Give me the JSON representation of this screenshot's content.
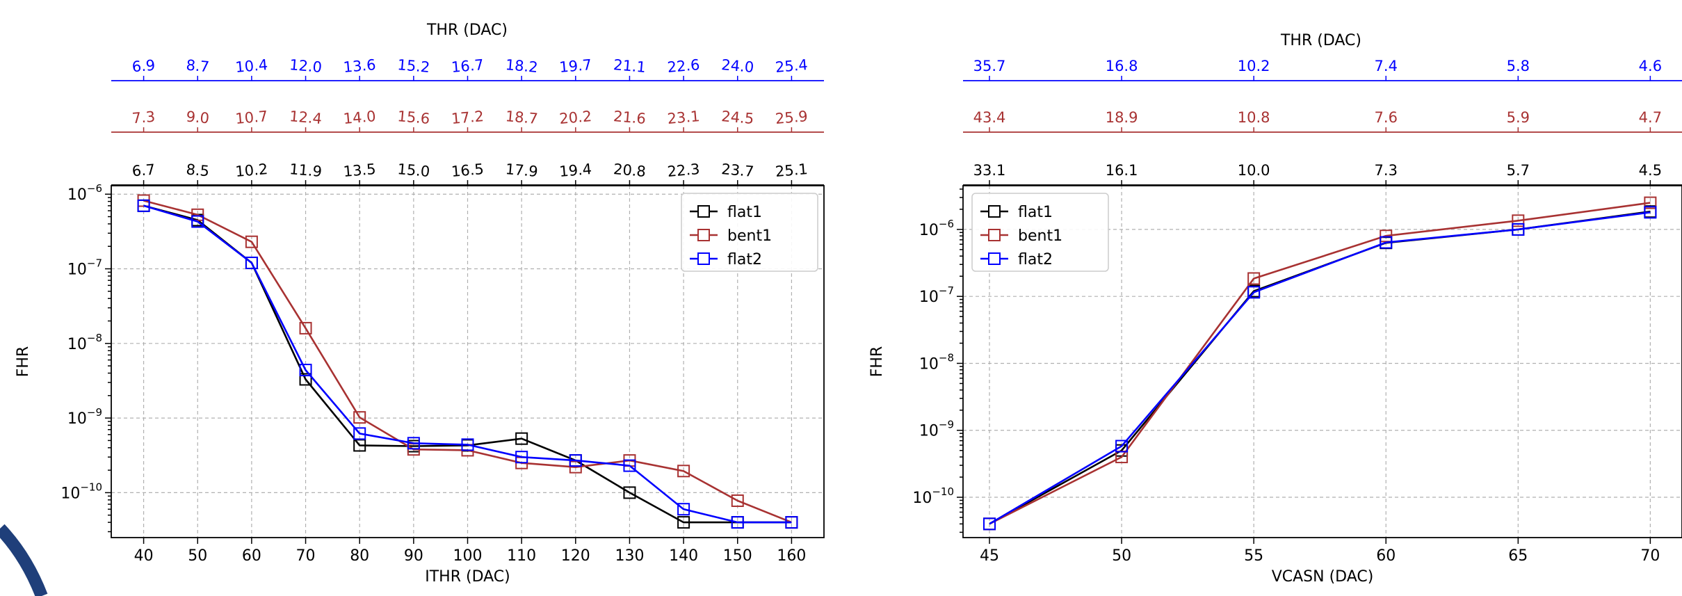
{
  "colors": {
    "flat1": "#000000",
    "bent1": "#a83232",
    "flat2": "#0000ff",
    "grid": "#b0b0b0",
    "accent_arc": "#1f3f7a"
  },
  "chart_data": [
    {
      "type": "line",
      "title": "",
      "xlabel": "ITHR (DAC)",
      "ylabel": "FHR",
      "yscale": "log",
      "ylim": [
        2.5e-11,
        1.3e-06
      ],
      "xlim": [
        34,
        166
      ],
      "x": [
        40,
        50,
        60,
        70,
        80,
        90,
        100,
        110,
        120,
        130,
        140,
        150,
        160
      ],
      "x_ticks": [
        40,
        50,
        60,
        70,
        80,
        90,
        100,
        110,
        120,
        130,
        140,
        150,
        160
      ],
      "y_ticks": [
        {
          "value": 1e-10,
          "exp": "−10"
        },
        {
          "value": 1e-09,
          "exp": "−9"
        },
        {
          "value": 1e-08,
          "exp": "−8"
        },
        {
          "value": 1e-07,
          "exp": "−7"
        },
        {
          "value": 1e-06,
          "exp": "−6"
        }
      ],
      "grid": true,
      "legend_position": "top-right",
      "series": [
        {
          "name": "flat1",
          "color": "#000000",
          "values": [
            7e-07,
            4.5e-07,
            1.2e-07,
            3.3e-09,
            4.3e-10,
            4.2e-10,
            4.3e-10,
            5.3e-10,
            2.7e-10,
            1e-10,
            4e-11,
            4e-11,
            4e-11
          ]
        },
        {
          "name": "bent1",
          "color": "#a83232",
          "values": [
            8.2e-07,
            5.3e-07,
            2.3e-07,
            1.6e-08,
            1.02e-09,
            3.8e-10,
            3.7e-10,
            2.5e-10,
            2.2e-10,
            2.7e-10,
            1.95e-10,
            7.8e-11,
            4e-11
          ]
        },
        {
          "name": "flat2",
          "color": "#0000ff",
          "values": [
            7e-07,
            4.3e-07,
            1.2e-07,
            4.4e-09,
            6.2e-10,
            4.6e-10,
            4.4e-10,
            3e-10,
            2.7e-10,
            2.3e-10,
            6e-11,
            4e-11,
            4e-11
          ]
        }
      ],
      "top_axis_label": "THR (DAC)",
      "top_axes": [
        {
          "series": "flat2",
          "color": "#0000ff",
          "labels": [
            "6.9",
            "8.7",
            "10.4",
            "12.0",
            "13.6",
            "15.2",
            "16.7",
            "18.2",
            "19.7",
            "21.1",
            "22.6",
            "24.0",
            "25.4"
          ]
        },
        {
          "series": "bent1",
          "color": "#a83232",
          "labels": [
            "7.3",
            "9.0",
            "10.7",
            "12.4",
            "14.0",
            "15.6",
            "17.2",
            "18.7",
            "20.2",
            "21.6",
            "23.1",
            "24.5",
            "25.9"
          ]
        },
        {
          "series": "flat1",
          "color": "#000000",
          "labels": [
            "6.7",
            "8.5",
            "10.2",
            "11.9",
            "13.5",
            "15.0",
            "16.5",
            "17.9",
            "19.4",
            "20.8",
            "22.3",
            "23.7",
            "25.1"
          ]
        }
      ]
    },
    {
      "type": "line",
      "title": "",
      "xlabel": "VCASN (DAC)",
      "ylabel": "FHR",
      "yscale": "log",
      "ylim": [
        2.5e-11,
        4.5e-06
      ],
      "xlim": [
        44,
        71.2
      ],
      "x": [
        45,
        50,
        55,
        60,
        65,
        70
      ],
      "x_ticks": [
        45,
        50,
        55,
        60,
        65,
        70
      ],
      "y_ticks": [
        {
          "value": 1e-10,
          "exp": "−10"
        },
        {
          "value": 1e-09,
          "exp": "−9"
        },
        {
          "value": 1e-08,
          "exp": "−8"
        },
        {
          "value": 1e-07,
          "exp": "−7"
        },
        {
          "value": 1e-06,
          "exp": "−6"
        }
      ],
      "grid": true,
      "legend_position": "top-left",
      "series": [
        {
          "name": "flat1",
          "color": "#000000",
          "values": [
            4e-11,
            5e-10,
            1.2e-07,
            6.3e-07,
            1e-06,
            1.85e-06
          ]
        },
        {
          "name": "bent1",
          "color": "#a83232",
          "values": [
            4e-11,
            4e-10,
            1.85e-07,
            8e-07,
            1.35e-06,
            2.5e-06
          ]
        },
        {
          "name": "flat2",
          "color": "#0000ff",
          "values": [
            4e-11,
            5.8e-10,
            1.15e-07,
            6.4e-07,
            1e-06,
            1.8e-06
          ]
        }
      ],
      "top_axis_label": "THR (DAC)",
      "top_axes": [
        {
          "series": "flat2",
          "color": "#0000ff",
          "labels": [
            "35.7",
            "16.8",
            "10.2",
            "7.4",
            "5.8",
            "4.6"
          ]
        },
        {
          "series": "bent1",
          "color": "#a83232",
          "labels": [
            "43.4",
            "18.9",
            "10.8",
            "7.6",
            "5.9",
            "4.7"
          ]
        },
        {
          "series": "flat1",
          "color": "#000000",
          "labels": [
            "33.1",
            "16.1",
            "10.0",
            "7.3",
            "5.7",
            "4.5"
          ]
        }
      ]
    }
  ]
}
